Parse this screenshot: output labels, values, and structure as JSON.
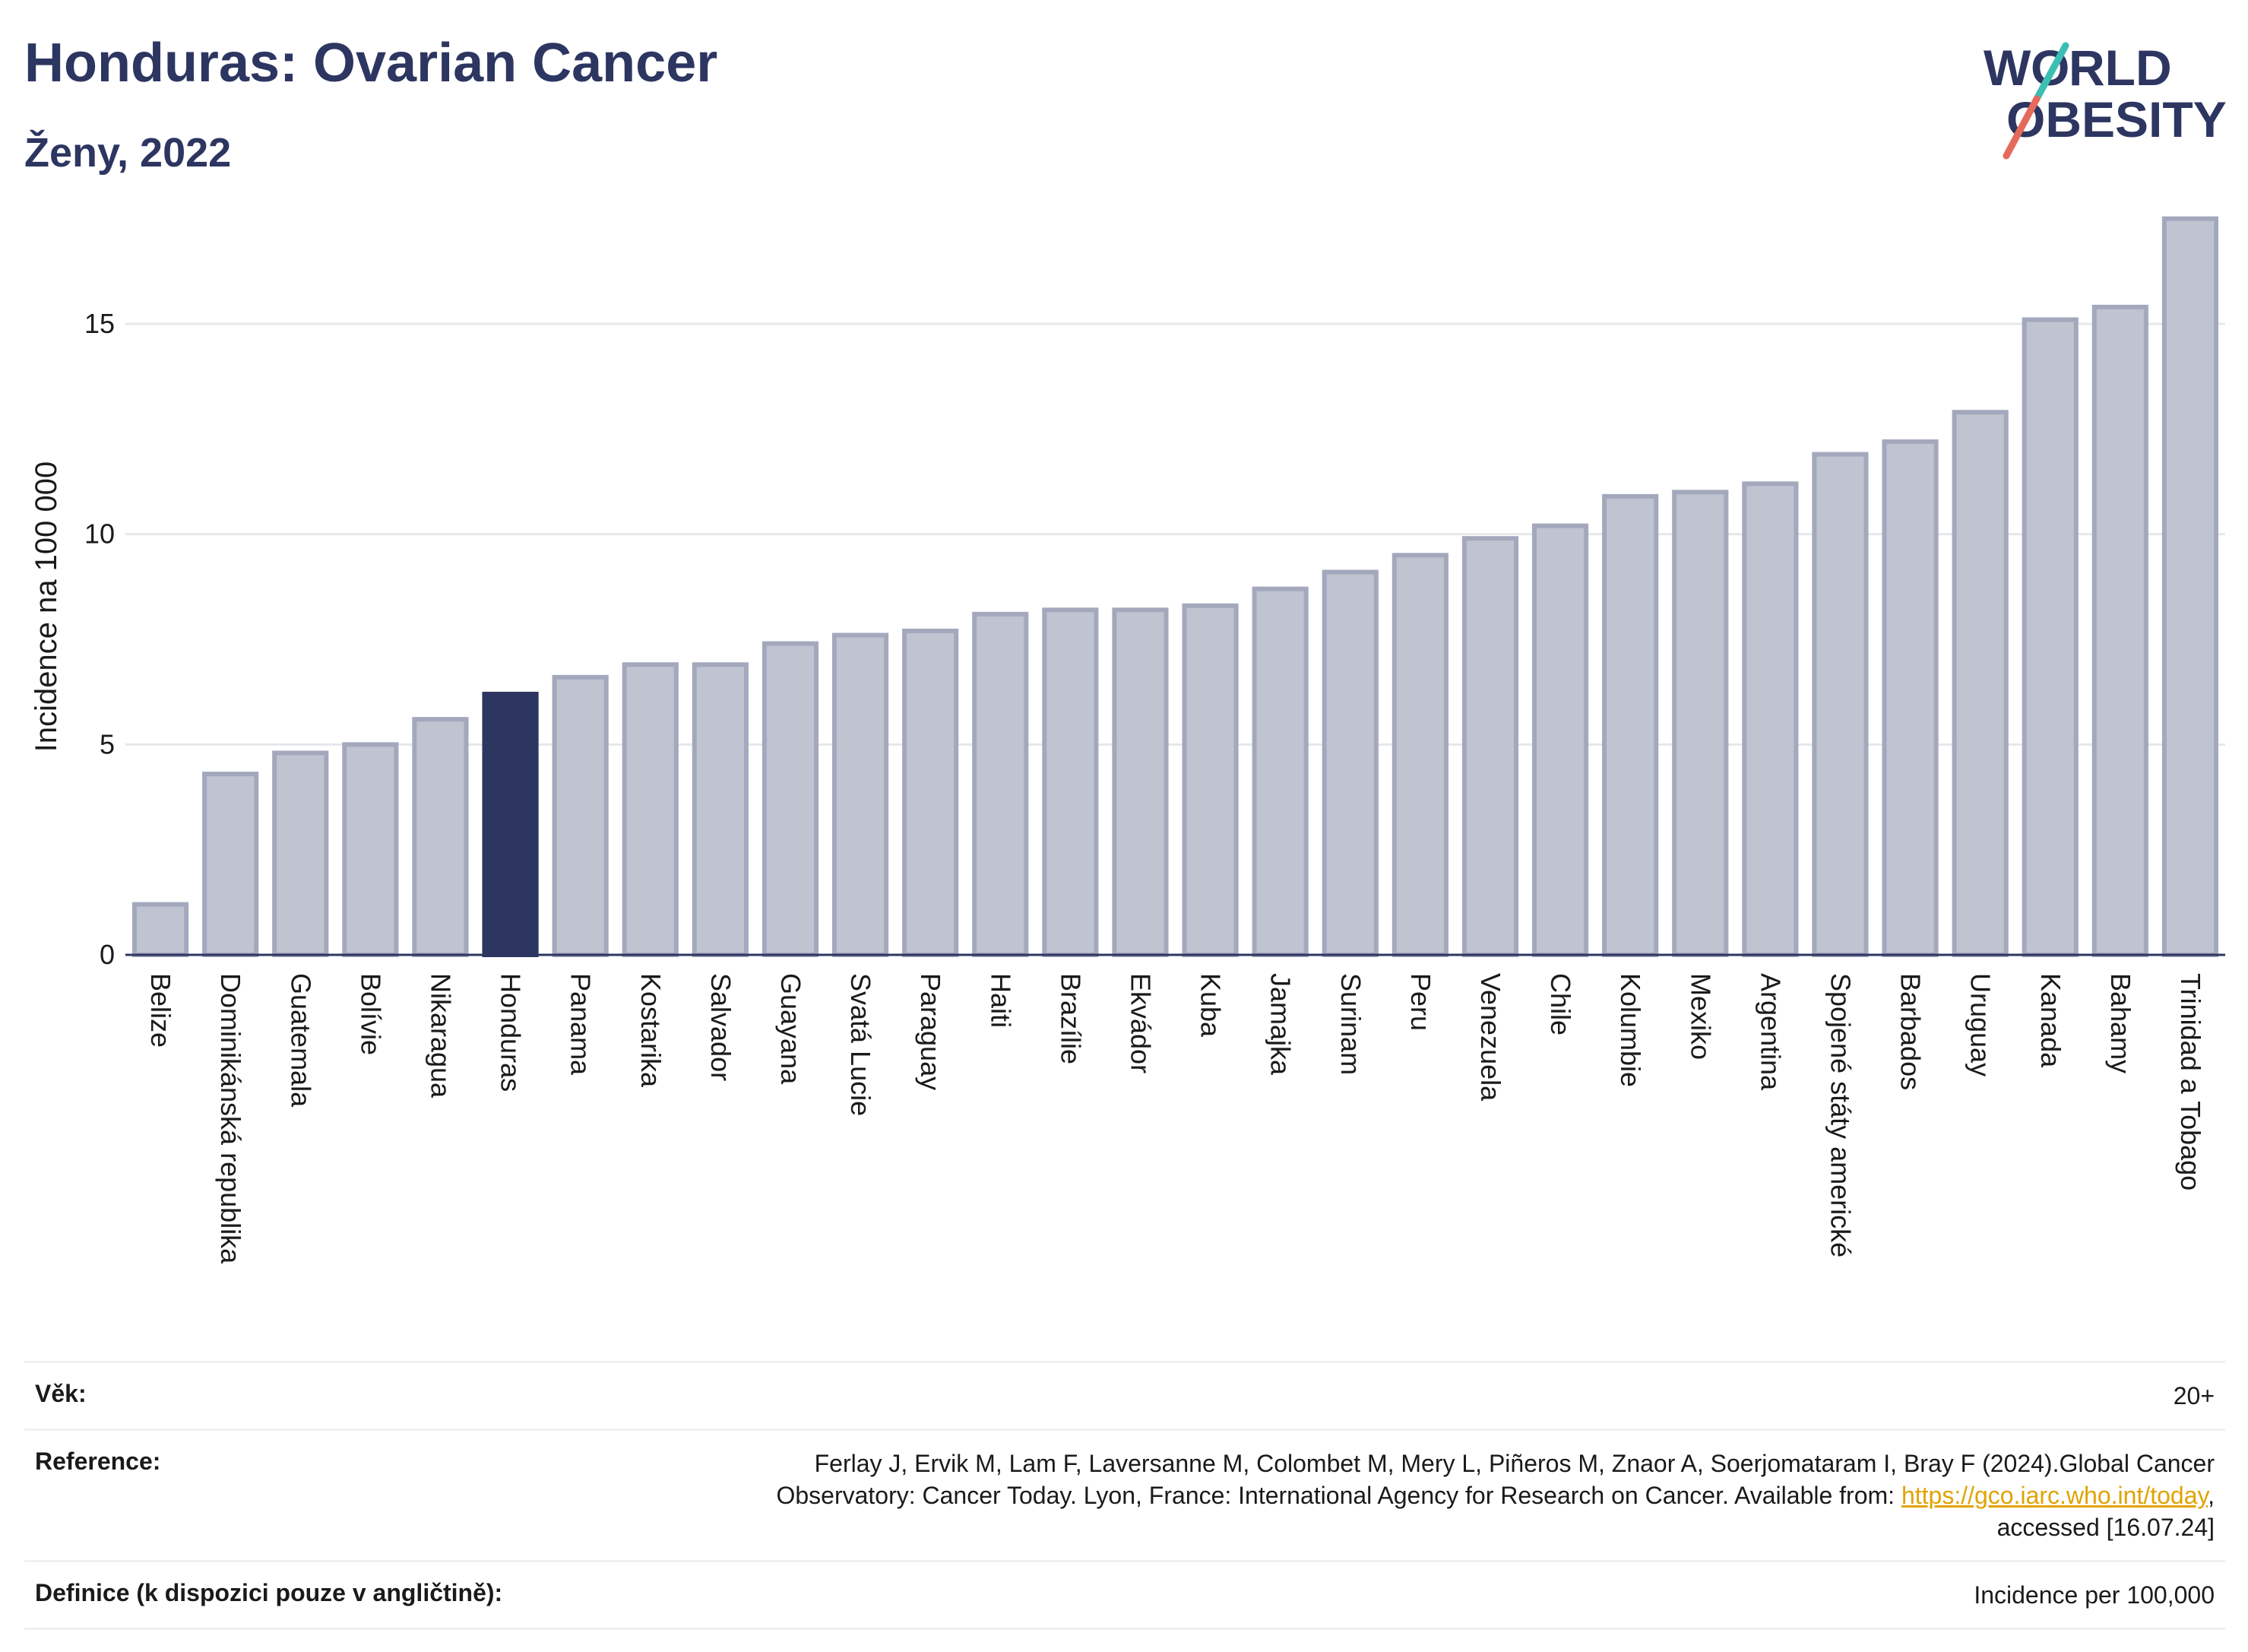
{
  "header": {
    "title": "Honduras: Ovarian Cancer",
    "subtitle": "Ženy, 2022"
  },
  "logo": {
    "line1_a": "W",
    "line1_b": "RLD",
    "line2_a": "",
    "line2_b": "BESITY",
    "text": "WORLD OBESITY",
    "colors": {
      "text": "#2d3561",
      "slash_top": "#3bbfb5",
      "slash_bottom": "#e56a5c"
    }
  },
  "chart_data": {
    "type": "bar",
    "title": "Honduras: Ovarian Cancer",
    "subtitle": "Ženy, 2022",
    "ylabel": "Incidence na 100 000",
    "xlabel": "",
    "ylim": [
      0,
      18
    ],
    "yticks": [
      0,
      5,
      10,
      15
    ],
    "grid": true,
    "highlight": "Honduras",
    "colors": {
      "bar": "#c0c4d0",
      "bar_edge": "#a3a8bd",
      "highlight": "#2d3561",
      "grid": "#e6e8ec",
      "axis": "#2d3561"
    },
    "categories": [
      "Belize",
      "Dominikánská republika",
      "Guatemala",
      "Bolívie",
      "Nikaragua",
      "Honduras",
      "Panama",
      "Kostarika",
      "Salvador",
      "Guayana",
      "Svatá Lucie",
      "Paraguay",
      "Haiti",
      "Brazílie",
      "Ekvádor",
      "Kuba",
      "Jamajka",
      "Surinam",
      "Peru",
      "Venezuela",
      "Chile",
      "Kolumbie",
      "Mexiko",
      "Argentina",
      "Spojené státy americké",
      "Barbados",
      "Uruguay",
      "Kanada",
      "Bahamy",
      "Trinidad a Tobago"
    ],
    "values": [
      1.2,
      4.3,
      4.8,
      5.0,
      5.6,
      6.2,
      6.6,
      6.9,
      6.9,
      7.4,
      7.6,
      7.7,
      8.1,
      8.2,
      8.2,
      8.3,
      8.7,
      9.1,
      9.5,
      9.9,
      10.2,
      10.9,
      11.0,
      11.2,
      11.9,
      12.2,
      12.9,
      15.1,
      15.4,
      17.5
    ]
  },
  "info": {
    "age_label": "Věk:",
    "age_value": "20+",
    "reference_label": "Reference:",
    "reference_line1": "Ferlay J, Ervik M, Lam F, Laversanne M, Colombet M, Mery L, Piñeros M, Znaor A, Soerjomataram I, Bray F (2024).Global Cancer",
    "reference_line2_pre": "Observatory: Cancer Today. Lyon, France: International Agency for Research on Cancer. Available from: ",
    "reference_link": "https://gco.iarc.who.int/today",
    "reference_line2_post": ",",
    "reference_line3": "accessed [16.07.24]",
    "definition_label": "Definice (k dispozici pouze v angličtině):",
    "definition_value": "Incidence per 100,000"
  }
}
